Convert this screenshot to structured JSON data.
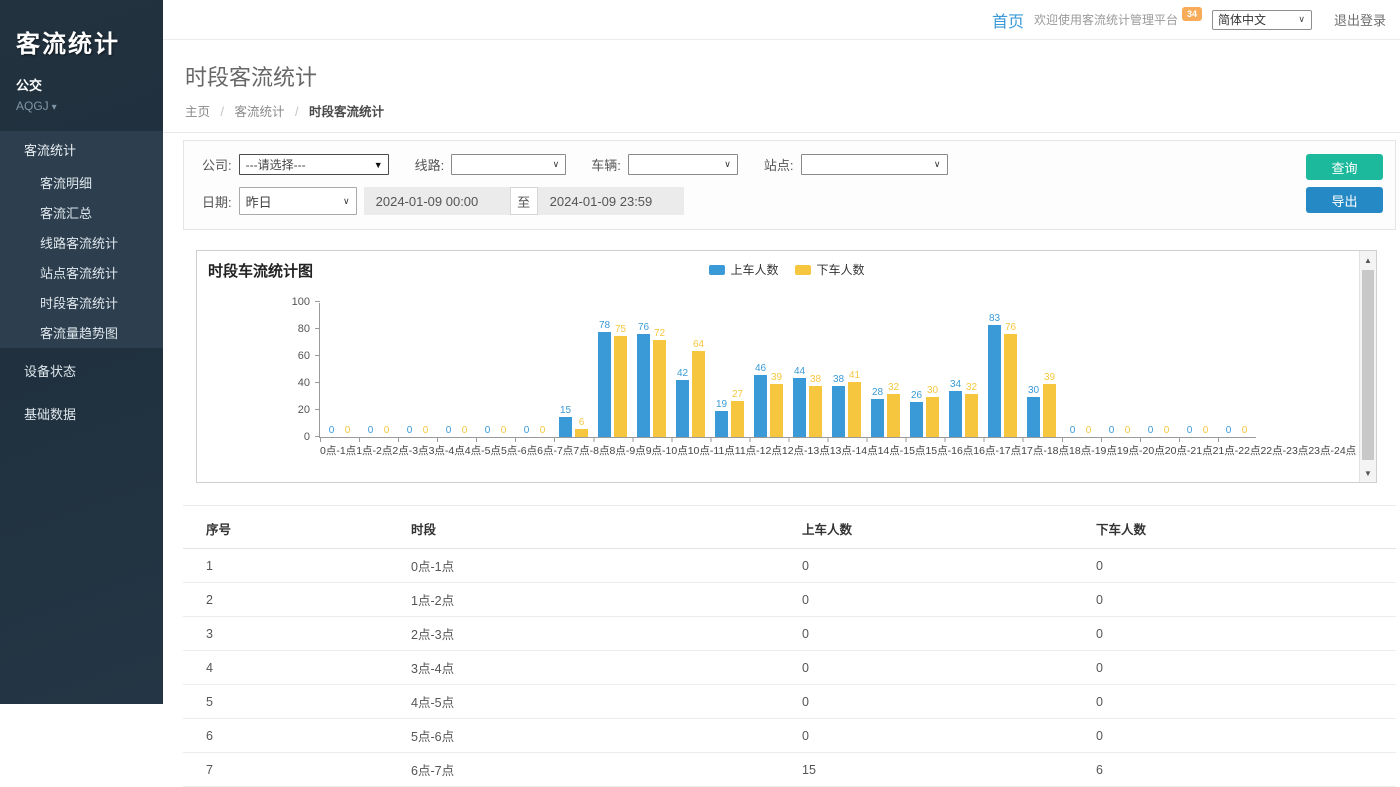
{
  "icons": {
    "caret_down": "▾",
    "chevron_down": "∨",
    "dropdown_arrow": "▼",
    "scroll_up": "▲",
    "scroll_down": "▼"
  },
  "sidebar": {
    "app_title": "客流统计",
    "org": "公交",
    "org_code": "AQGJ",
    "sections": [
      {
        "label": "客流统计",
        "expanded": true,
        "children": [
          "客流明细",
          "客流汇总",
          "线路客流统计",
          "站点客流统计",
          "时段客流统计",
          "客流量趋势图"
        ],
        "active_child": "时段客流统计"
      },
      {
        "label": "设备状态"
      },
      {
        "label": "基础数据"
      }
    ]
  },
  "topbar": {
    "home": "首页",
    "welcome": "欢迎使用客流统计管理平台",
    "badge": "34",
    "language": "简体中文",
    "logout": "退出登录"
  },
  "page": {
    "title": "时段客流统计",
    "breadcrumb": [
      "主页",
      "客流统计",
      "时段客流统计"
    ],
    "breadcrumb_separator": "/"
  },
  "filters": {
    "company_label": "公司:",
    "company_value": "---请选择---",
    "line_label": "线路:",
    "line_value": "",
    "vehicle_label": "车辆:",
    "vehicle_value": "",
    "station_label": "站点:",
    "station_value": "",
    "date_label": "日期:",
    "date_preset": "昨日",
    "date_from": "2024-01-09 00:00",
    "date_to_separator": "至",
    "date_to": "2024-01-09 23:59",
    "query_button": "查询",
    "export_button": "导出"
  },
  "chart_data": {
    "type": "bar",
    "title": "时段车流统计图",
    "categories": [
      "0点-1点",
      "1点-2点",
      "2点-3点",
      "3点-4点",
      "4点-5点",
      "5点-6点",
      "6点-7点",
      "7点-8点",
      "8点-9点",
      "9点-10点",
      "10点-11点",
      "11点-12点",
      "12点-13点",
      "13点-14点",
      "14点-15点",
      "15点-16点",
      "16点-17点",
      "17点-18点",
      "18点-19点",
      "19点-20点",
      "20点-21点",
      "21点-22点",
      "22点-23点",
      "23点-24点"
    ],
    "series": [
      {
        "name": "上车人数",
        "color": "#3a9ad7",
        "values": [
          0,
          0,
          0,
          0,
          0,
          0,
          15,
          78,
          76,
          42,
          19,
          46,
          44,
          38,
          28,
          26,
          34,
          83,
          30,
          0,
          0,
          0,
          0,
          0
        ]
      },
      {
        "name": "下车人数",
        "color": "#f6c73e",
        "values": [
          0,
          0,
          0,
          0,
          0,
          0,
          6,
          75,
          72,
          64,
          27,
          39,
          38,
          41,
          32,
          30,
          32,
          76,
          39,
          0,
          0,
          0,
          0,
          0
        ]
      }
    ],
    "xlabel": "",
    "ylabel": "",
    "ylim": [
      0,
      100
    ],
    "yticks": [
      0,
      20,
      40,
      60,
      80,
      100
    ],
    "grid": false,
    "legend_position": "top-center"
  },
  "table": {
    "headers": [
      "序号",
      "时段",
      "上车人数",
      "下车人数"
    ],
    "rows": [
      [
        "1",
        "0点-1点",
        "0",
        "0"
      ],
      [
        "2",
        "1点-2点",
        "0",
        "0"
      ],
      [
        "3",
        "2点-3点",
        "0",
        "0"
      ],
      [
        "4",
        "3点-4点",
        "0",
        "0"
      ],
      [
        "5",
        "4点-5点",
        "0",
        "0"
      ],
      [
        "6",
        "5点-6点",
        "0",
        "0"
      ],
      [
        "7",
        "6点-7点",
        "15",
        "6"
      ]
    ]
  }
}
